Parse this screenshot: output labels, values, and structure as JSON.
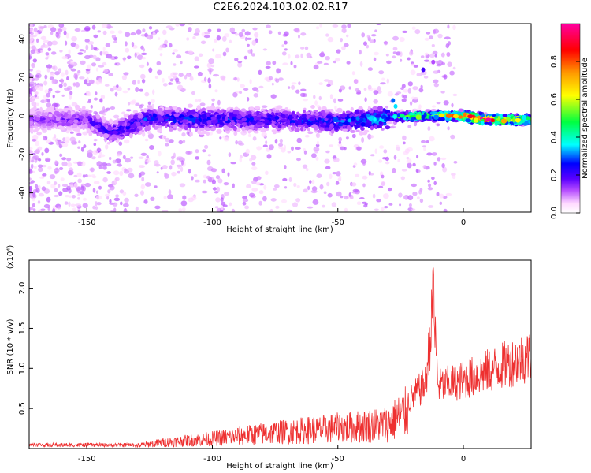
{
  "title": "C2E6.2024.103.02.02.R17",
  "chart_data": [
    {
      "type": "heatmap",
      "xlabel": "Height of straight line (km)",
      "ylabel": "Frequency (Hz)",
      "xlim": [
        -173,
        27
      ],
      "ylim": [
        -50,
        48
      ],
      "x_ticks": [
        -150,
        -100,
        -50,
        0
      ],
      "y_ticks": [
        -40,
        -20,
        0,
        20,
        40
      ],
      "colorbar": {
        "label": "Normalized spectral amplitude",
        "range": [
          0,
          1
        ],
        "ticks": [
          0.0,
          0.2,
          0.4,
          0.6,
          0.8
        ],
        "colormap": [
          "#ffffff",
          "#ffd9ff",
          "#b44bff",
          "#5a00ff",
          "#0000ff",
          "#00ffff",
          "#00ff40",
          "#ffff00",
          "#ff9900",
          "#ff0000",
          "#ff00a0"
        ]
      },
      "ridge": [
        {
          "x": -173,
          "freq": -2,
          "amp": 0.15
        },
        {
          "x": -150,
          "freq": -2,
          "amp": 0.18
        },
        {
          "x": -140,
          "freq": -9,
          "amp": 0.25
        },
        {
          "x": -125,
          "freq": -1,
          "amp": 0.28
        },
        {
          "x": -100,
          "freq": -2,
          "amp": 0.27
        },
        {
          "x": -75,
          "freq": -2,
          "amp": 0.25
        },
        {
          "x": -50,
          "freq": -3,
          "amp": 0.3
        },
        {
          "x": -30,
          "freq": -1,
          "amp": 0.4
        },
        {
          "x": -20,
          "freq": 0,
          "amp": 0.6
        },
        {
          "x": -10,
          "freq": 0,
          "amp": 0.6
        },
        {
          "x": 0,
          "freq": 0,
          "amp": 0.9
        },
        {
          "x": 10,
          "freq": -2,
          "amp": 0.95
        },
        {
          "x": 27,
          "freq": -2,
          "amp": 0.6
        }
      ]
    },
    {
      "type": "line",
      "xlabel": "Height of straight line (km)",
      "ylabel": "SNR (10 * v/v)",
      "y_multiplier": "(x10⁴)",
      "xlim": [
        -173,
        27
      ],
      "ylim": [
        0,
        2.35
      ],
      "x_ticks": [
        -150,
        -100,
        -50,
        0
      ],
      "y_ticks": [
        0.5,
        1.0,
        1.5,
        2.0
      ],
      "color": "#ee3030",
      "envelope": [
        {
          "x": -173,
          "y": 0.04
        },
        {
          "x": -130,
          "y": 0.06
        },
        {
          "x": -120,
          "y": 0.12
        },
        {
          "x": -100,
          "y": 0.2
        },
        {
          "x": -80,
          "y": 0.3
        },
        {
          "x": -60,
          "y": 0.38
        },
        {
          "x": -40,
          "y": 0.45
        },
        {
          "x": -30,
          "y": 0.5
        },
        {
          "x": -22,
          "y": 0.75
        },
        {
          "x": -15,
          "y": 1.05
        },
        {
          "x": -12,
          "y": 2.3
        },
        {
          "x": -10,
          "y": 1.0
        },
        {
          "x": -5,
          "y": 1.05
        },
        {
          "x": 0,
          "y": 1.1
        },
        {
          "x": 10,
          "y": 1.25
        },
        {
          "x": 20,
          "y": 1.4
        },
        {
          "x": 27,
          "y": 1.5
        }
      ]
    }
  ]
}
